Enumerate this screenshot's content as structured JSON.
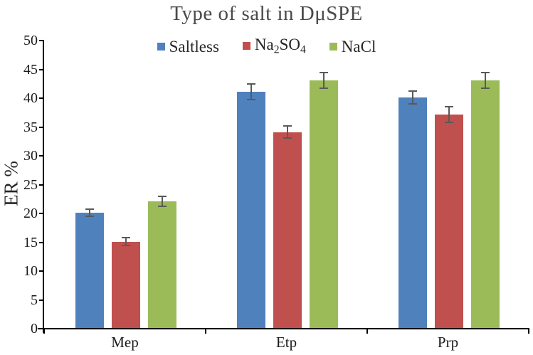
{
  "title": "Type of salt in DμSPE",
  "legend": {
    "items": [
      {
        "name": "Saltless",
        "color": "#4F81BD",
        "segments": [
          {
            "text": "Saltless",
            "sub": false
          }
        ]
      },
      {
        "name": "Na2SO4",
        "color": "#C0504D",
        "segments": [
          {
            "text": "Na",
            "sub": false
          },
          {
            "text": "2",
            "sub": true
          },
          {
            "text": "SO",
            "sub": false
          },
          {
            "text": "4",
            "sub": true
          }
        ]
      },
      {
        "name": "NaCl",
        "color": "#9BBB59",
        "segments": [
          {
            "text": "NaCl",
            "sub": false
          }
        ]
      }
    ]
  },
  "chart_data": {
    "type": "bar",
    "title": "Type of salt in DμSPE",
    "categories": [
      "Mep",
      "Etp",
      "Prp"
    ],
    "series": [
      {
        "name": "Saltless",
        "color": "#4F81BD",
        "values": [
          20,
          41,
          40
        ],
        "errors": [
          0.8,
          1.5,
          1.2
        ]
      },
      {
        "name": "Na2SO4",
        "color": "#C0504D",
        "values": [
          15,
          34,
          37
        ],
        "errors": [
          0.8,
          1.2,
          1.5
        ]
      },
      {
        "name": "NaCl",
        "color": "#9BBB59",
        "values": [
          22,
          43,
          43
        ],
        "errors": [
          1.0,
          1.5,
          1.5
        ]
      }
    ],
    "xlabel": "",
    "ylabel": "ER %",
    "ylim": [
      0,
      50
    ],
    "ytick_step": 5,
    "grid": false,
    "legend_position": "top center",
    "error_bars": true,
    "error_bar_color": "#595959",
    "axis_color": "#000000",
    "title_color": "#4a4a4a"
  }
}
